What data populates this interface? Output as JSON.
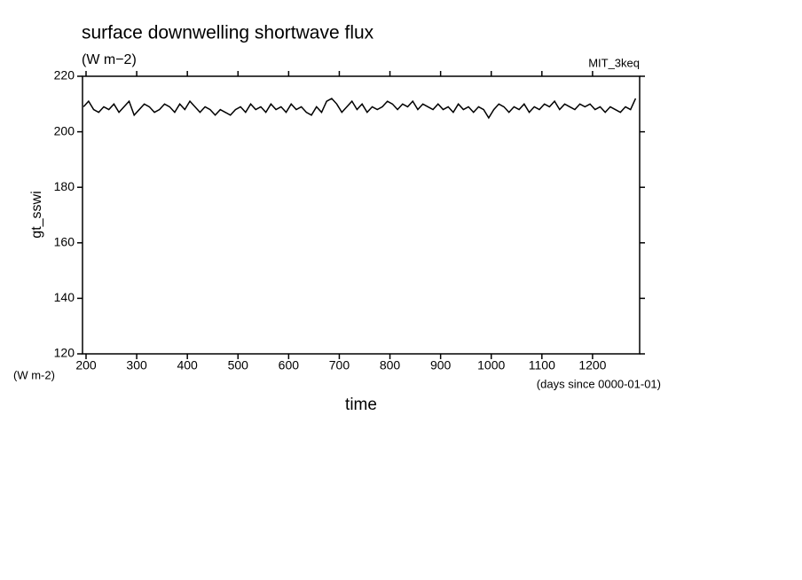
{
  "chart_data": {
    "type": "line",
    "title": "surface downwelling shortwave flux",
    "subtitle": "(W m−2)",
    "annotation": "MIT_3keq",
    "y_label": "gt_sswi",
    "y_units": "(W m-2)",
    "x_units": "(days since 0000-01-01)",
    "x_label": "time",
    "xlim": [
      193,
      1293
    ],
    "xticks": [
      200,
      300,
      400,
      500,
      600,
      700,
      800,
      900,
      1000,
      1100,
      1200
    ],
    "ylim": [
      120,
      220
    ],
    "yticks": [
      120,
      140,
      160,
      180,
      200,
      220
    ],
    "x": [
      195,
      205,
      215,
      225,
      235,
      245,
      255,
      265,
      275,
      285,
      295,
      305,
      315,
      325,
      335,
      345,
      355,
      365,
      375,
      385,
      395,
      405,
      415,
      425,
      435,
      445,
      455,
      465,
      475,
      485,
      495,
      505,
      515,
      525,
      535,
      545,
      555,
      565,
      575,
      585,
      595,
      605,
      615,
      625,
      635,
      645,
      655,
      665,
      675,
      685,
      695,
      705,
      715,
      725,
      735,
      745,
      755,
      765,
      775,
      785,
      795,
      805,
      815,
      825,
      835,
      845,
      855,
      865,
      875,
      885,
      895,
      905,
      915,
      925,
      935,
      945,
      955,
      965,
      975,
      985,
      995,
      1005,
      1015,
      1025,
      1035,
      1045,
      1055,
      1065,
      1075,
      1085,
      1095,
      1105,
      1115,
      1125,
      1135,
      1145,
      1155,
      1165,
      1175,
      1185,
      1195,
      1205,
      1215,
      1225,
      1235,
      1245,
      1255,
      1265,
      1275,
      1285
    ],
    "series": [
      {
        "color": "#000000",
        "values": [
          209,
          211,
          208,
          207,
          209,
          208,
          210,
          207,
          209,
          211,
          206,
          208,
          210,
          209,
          207,
          208,
          210,
          209,
          207,
          210,
          208,
          211,
          209,
          207,
          209,
          208,
          206,
          208,
          207,
          206,
          208,
          209,
          207,
          210,
          208,
          209,
          207,
          210,
          208,
          209,
          207,
          210,
          208,
          209,
          207,
          206,
          209,
          207,
          211,
          212,
          210,
          207,
          209,
          211,
          208,
          210,
          207,
          209,
          208,
          209,
          211,
          210,
          208,
          210,
          209,
          211,
          208,
          210,
          209,
          208,
          210,
          208,
          209,
          207,
          210,
          208,
          209,
          207,
          209,
          208,
          205,
          208,
          210,
          209,
          207,
          209,
          208,
          210,
          207,
          209,
          208,
          210,
          209,
          211,
          208,
          210,
          209,
          208,
          210,
          209,
          210,
          208,
          209,
          207,
          209,
          208,
          207,
          209,
          208,
          212
        ]
      }
    ]
  }
}
